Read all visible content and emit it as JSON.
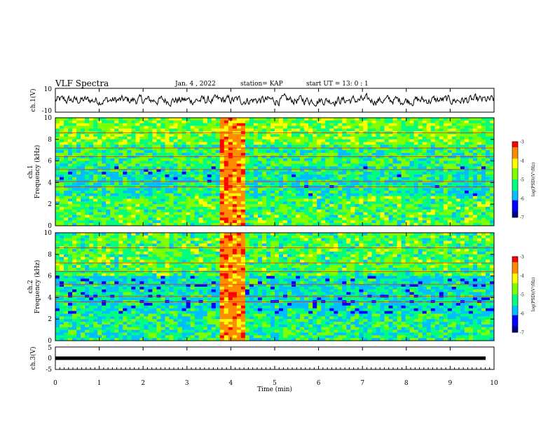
{
  "header": {
    "title": "VLF Spectra",
    "date": "Jan. 4 , 2022",
    "station": "station= KAP",
    "start": "start UT = 13: 0 : 1"
  },
  "colors": {
    "waveform": "#000000",
    "colormap": [
      "#000080",
      "#0000ff",
      "#00bfff",
      "#00ff7f",
      "#7fff00",
      "#ffff00",
      "#ff8c00",
      "#ff0000"
    ]
  },
  "chart_data": [
    {
      "type": "line",
      "id": "ch1-waveform",
      "ylabel": "ch.1(V)",
      "ylim": [
        -10,
        10
      ],
      "yticks": [
        "10",
        "-10"
      ],
      "xlim": [
        0,
        10
      ]
    },
    {
      "type": "heatmap",
      "id": "ch1-spectrogram",
      "ylabel": "ch.1",
      "ylabel2": "Frequency (kHz)",
      "ylim": [
        0,
        10
      ],
      "yticks": [
        "0",
        "2",
        "4",
        "6",
        "8",
        "10"
      ],
      "xlim": [
        0,
        10
      ],
      "broadband_burst_min": [
        3.75,
        4.35
      ],
      "colorbar": {
        "label": "log(PSD)(V²/Hz)",
        "ticks": [
          "-3",
          "-4",
          "-5",
          "-6",
          "-7"
        ],
        "range": [
          -7,
          -3
        ]
      }
    },
    {
      "type": "heatmap",
      "id": "ch2-spectrogram",
      "ylabel": "ch.2",
      "ylabel2": "Frequency (kHz)",
      "ylim": [
        0,
        10
      ],
      "yticks": [
        "0",
        "2",
        "4",
        "6",
        "8",
        "10"
      ],
      "xlim": [
        0,
        10
      ],
      "broadband_burst_min": [
        3.75,
        4.35
      ],
      "colorbar": {
        "label": "log(PSD)(V²/Hz)",
        "ticks": [
          "-3",
          "-4",
          "-5",
          "-6",
          "-7"
        ],
        "range": [
          -7,
          -3
        ]
      }
    },
    {
      "type": "line",
      "id": "ch3-trigger",
      "ylabel": "ch.3(V)",
      "ylim": [
        -5,
        5
      ],
      "yticks": [
        "5",
        "0",
        "-5"
      ],
      "xlim": [
        0,
        10
      ],
      "level": 0
    }
  ],
  "xaxis": {
    "label": "Time (min)",
    "ticks": [
      "0",
      "1",
      "2",
      "3",
      "4",
      "5",
      "6",
      "7",
      "8",
      "9",
      "10"
    ]
  }
}
